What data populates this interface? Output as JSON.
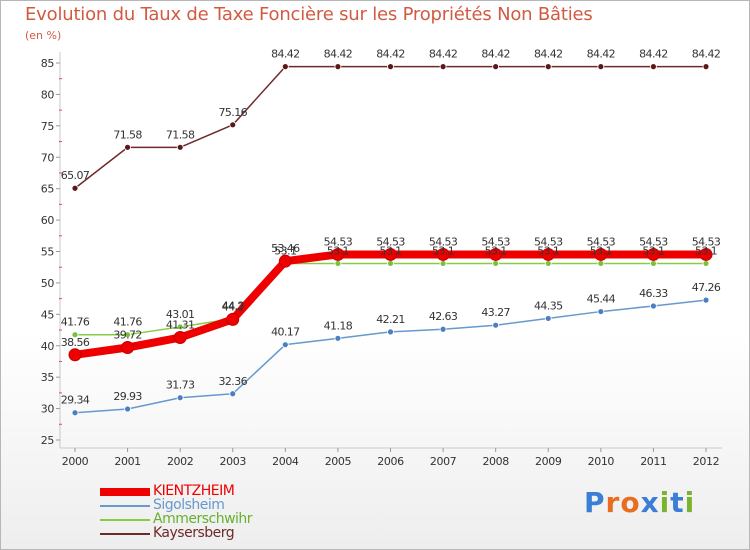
{
  "title": "Evolution du Taux de Taxe Foncière sur les Propriétés Non Bâties",
  "unit_label": "(en %)",
  "brand": {
    "letters": [
      "P",
      "r",
      "o",
      "x",
      "i",
      "t",
      "i"
    ],
    "colors": [
      "#3a7fd5",
      "#e86d1f",
      "#e86d1f",
      "#3a7fd5",
      "#7ab32e",
      "#3a7fd5",
      "#7ab32e"
    ]
  },
  "chart_data": {
    "type": "line",
    "title": "Evolution du Taux de Taxe Foncière sur les Propriétés Non Bâties",
    "ylabel": "(en %)",
    "xlabel": "",
    "x": [
      "2000",
      "2001",
      "2002",
      "2003",
      "2004",
      "2005",
      "2006",
      "2007",
      "2008",
      "2009",
      "2010",
      "2011",
      "2012"
    ],
    "ylim": [
      25,
      85
    ],
    "yticks": [
      25,
      30,
      35,
      40,
      45,
      50,
      55,
      60,
      65,
      70,
      75,
      80,
      85
    ],
    "grid": false,
    "legend_position": "bottom-left",
    "series": [
      {
        "name": "KIENTZHEIM",
        "color": "#ee0000",
        "marker_color": "#ee0000",
        "values": [
          38.56,
          39.72,
          41.31,
          44.2,
          53.46,
          54.53,
          54.53,
          54.53,
          54.53,
          54.53,
          54.53,
          54.53,
          54.53
        ],
        "labels": [
          "38.56",
          "39.72",
          "41.31",
          "44.2",
          "53.46",
          "54.53",
          "54.53",
          "54.53",
          "54.53",
          "54.53",
          "54.53",
          "54.53",
          "54.53"
        ]
      },
      {
        "name": "Sigolsheim",
        "color": "#6699cc",
        "marker_color": "#4a7fc1",
        "values": [
          29.34,
          29.93,
          31.73,
          32.36,
          40.17,
          41.18,
          42.21,
          42.63,
          43.27,
          44.35,
          45.44,
          46.33,
          47.26
        ],
        "labels": [
          "29.34",
          "29.93",
          "31.73",
          "32.36",
          "40.17",
          "41.18",
          "42.21",
          "42.63",
          "43.27",
          "44.35",
          "45.44",
          "46.33",
          "47.26"
        ]
      },
      {
        "name": "Ammerschwihr",
        "color": "#88cc44",
        "marker_color": "#77c23a",
        "values": [
          41.76,
          41.76,
          43.01,
          44.3,
          53.1,
          53.1,
          53.1,
          53.1,
          53.1,
          53.1,
          53.1,
          53.1,
          53.1
        ],
        "labels": [
          "41.76",
          "41.76",
          "43.01",
          "44.3",
          "53.1",
          "53.1",
          "53.1",
          "53.1",
          "53.1",
          "53.1",
          "53.1",
          "53.1",
          "53.1"
        ]
      },
      {
        "name": "Kaysersberg",
        "color": "#6e2a2a",
        "marker_color": "#5a1818",
        "values": [
          65.07,
          71.58,
          71.58,
          75.16,
          84.42,
          84.42,
          84.42,
          84.42,
          84.42,
          84.42,
          84.42,
          84.42,
          84.42
        ],
        "labels": [
          "65.07",
          "71.58",
          "71.58",
          "75.16",
          "84.42",
          "84.42",
          "84.42",
          "84.42",
          "84.42",
          "84.42",
          "84.42",
          "84.42",
          "84.42"
        ]
      }
    ]
  }
}
